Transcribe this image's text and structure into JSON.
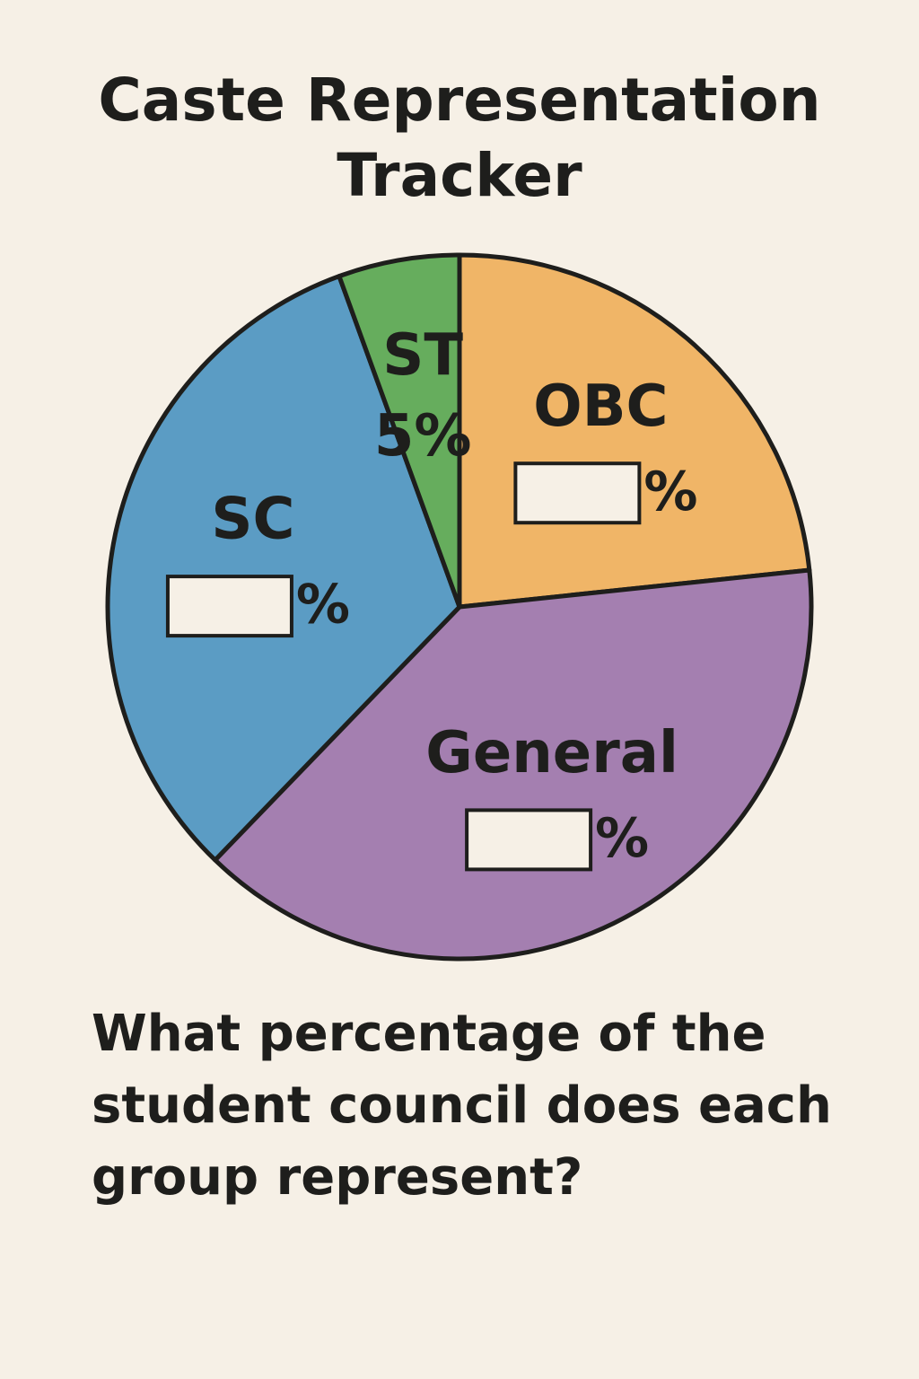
{
  "chart_data": {
    "type": "pie",
    "title": "Caste Representation Tracker",
    "categories": [
      "OBC",
      "General",
      "SC",
      "ST"
    ],
    "values": [
      21,
      35,
      29,
      5
    ],
    "value_labels": [
      null,
      null,
      null,
      "5%"
    ],
    "blank_label": "%",
    "colors": [
      "#f0b567",
      "#a47fb0",
      "#5b9cc4",
      "#66ad5d"
    ]
  },
  "question": "What percentage of the student council does each group represent?"
}
